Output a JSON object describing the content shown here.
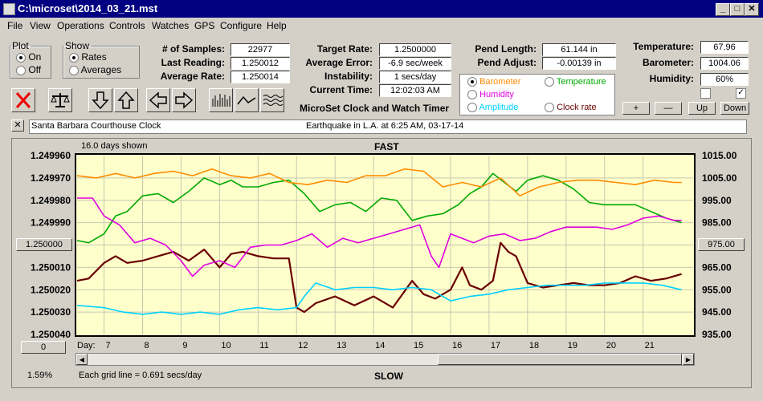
{
  "window": {
    "title": "C:\\microset\\2014_03_21.mst"
  },
  "menu": [
    "File",
    "View",
    "Operations",
    "Controls",
    "Watches",
    "GPS",
    "Configure",
    "Help"
  ],
  "plot_group": {
    "legend": "Plot",
    "on": "On",
    "off": "Off",
    "selected": "On"
  },
  "show_group": {
    "legend": "Show",
    "rates": "Rates",
    "averages": "Averages",
    "selected": "Rates"
  },
  "stats": {
    "samples_label": "# of Samples:",
    "samples": "22977",
    "last_label": "Last Reading:",
    "last": "1.250012",
    "avg_label": "Average Rate:",
    "avg": "1.250014"
  },
  "rates": {
    "target_label": "Target Rate:",
    "target": "1.2500000",
    "error_label": "Average Error:",
    "error": "-6.9 sec/week",
    "instab_label": "Instability:",
    "instab": "1 secs/day",
    "time_label": "Current Time:",
    "time": "12:02:03 AM"
  },
  "pend": {
    "length_label": "Pend Length:",
    "length": "61.144 in",
    "adjust_label": "Pend Adjust:",
    "adjust": "-0.00139 in"
  },
  "env": {
    "temp_label": "Temperature:",
    "temp": "67.96",
    "baro_label": "Barometer:",
    "baro": "1004.06",
    "hum_label": "Humidity:",
    "hum": "60%"
  },
  "overlay": {
    "barometer": "Barometer",
    "temperature": "Temperature",
    "humidity": "Humidity",
    "amplitude": "Amplitude",
    "clock_rate": "Clock rate",
    "selected": "Barometer"
  },
  "scale_buttons": {
    "plus": "+",
    "minus": "—",
    "up": "Up",
    "down": "Down"
  },
  "app_caption": "MicroSet Clock and Watch Timer",
  "clock_name": "Santa Barbara Courthouse Clock",
  "note": "Earthquake in L.A. at 6:25 AM, 03-17-14",
  "graph": {
    "days_shown": "16.0 days shown",
    "top_label": "FAST",
    "bottom_label": "SLOW",
    "grid_note": "Each grid line = 0.691 secs/day",
    "percent": "1.59%",
    "day_label": "Day:",
    "left_button": "1.250000",
    "right_button": "975.00",
    "zero_button": "0"
  },
  "colors": {
    "barometer": "#ff8c00",
    "temperature": "#00aa00",
    "humidity": "#e000e0",
    "amplitude": "#00d0ff",
    "clock_rate": "#6b0000"
  },
  "chart_data": {
    "type": "line",
    "title": "",
    "xlabel": "Day:",
    "x_ticks": [
      7,
      8,
      9,
      10,
      11,
      12,
      13,
      14,
      15,
      16,
      17,
      18,
      19,
      20,
      21
    ],
    "xlim": [
      6.3,
      22.3
    ],
    "left_axis": {
      "ticks": [
        "1.249960",
        "1.249970",
        "1.249980",
        "1.249990",
        "1.250000",
        "1.250010",
        "1.250020",
        "1.250030",
        "1.250040"
      ],
      "ylim": [
        1.25004,
        1.24996
      ]
    },
    "right_axis": {
      "ticks": [
        "1015.00",
        "1005.00",
        "995.00",
        "985.00",
        "975.00",
        "965.00",
        "955.00",
        "945.00",
        "935.00"
      ],
      "ylim": [
        935,
        1015
      ]
    },
    "series": [
      {
        "name": "Clock rate",
        "axis": "left",
        "color": "#6b0000",
        "x": [
          6.3,
          6.6,
          7.0,
          7.3,
          7.6,
          8.0,
          8.4,
          8.8,
          9.2,
          9.6,
          10.0,
          10.3,
          10.6,
          11.0,
          11.4,
          11.8,
          12.0,
          12.2,
          12.5,
          13.0,
          13.5,
          14.0,
          14.5,
          15.0,
          15.3,
          15.6,
          16.0,
          16.3,
          16.5,
          16.8,
          17.1,
          17.3,
          17.5,
          17.7,
          18.0,
          18.4,
          18.8,
          19.2,
          19.6,
          20.0,
          20.4,
          20.8,
          21.2,
          21.6,
          22.0
        ],
        "y": [
          1.250016,
          1.250015,
          1.250008,
          1.250005,
          1.250008,
          1.250007,
          1.250005,
          1.250003,
          1.250007,
          1.250002,
          1.25001,
          1.250004,
          1.250003,
          1.250005,
          1.250006,
          1.250006,
          1.250028,
          1.25003,
          1.250026,
          1.250023,
          1.250027,
          1.250023,
          1.250028,
          1.250016,
          1.250022,
          1.250024,
          1.25002,
          1.25001,
          1.250018,
          1.25002,
          1.250016,
          1.249999,
          1.250003,
          1.250005,
          1.250017,
          1.250019,
          1.250018,
          1.250017,
          1.250018,
          1.250018,
          1.250017,
          1.250014,
          1.250016,
          1.250015,
          1.250013
        ]
      },
      {
        "name": "Temperature",
        "axis": "right",
        "color": "#00aa00",
        "x": [
          6.3,
          6.6,
          7.0,
          7.3,
          7.6,
          8.0,
          8.4,
          8.8,
          9.2,
          9.6,
          10.0,
          10.3,
          10.6,
          11.0,
          11.4,
          11.8,
          12.2,
          12.6,
          13.0,
          13.4,
          13.8,
          14.2,
          14.6,
          15.0,
          15.4,
          15.8,
          16.2,
          16.5,
          16.8,
          17.1,
          17.4,
          17.7,
          18.0,
          18.4,
          18.8,
          19.2,
          19.6,
          20.0,
          20.4,
          20.8,
          21.2,
          21.6,
          22.0
        ],
        "y": [
          977,
          976,
          980,
          988,
          990,
          997,
          998,
          994,
          999,
          1005,
          1002,
          1004,
          1001,
          1001,
          1003,
          1004,
          998,
          990,
          993,
          994,
          990,
          996,
          995,
          986,
          988,
          989,
          993,
          998,
          1001,
          1007,
          1003,
          999,
          1004,
          1006,
          1004,
          1000,
          994,
          993,
          993,
          993,
          990,
          987,
          985
        ]
      },
      {
        "name": "Barometer",
        "axis": "right",
        "color": "#ff8c00",
        "x": [
          6.3,
          6.8,
          7.3,
          7.8,
          8.3,
          8.8,
          9.3,
          9.8,
          10.3,
          10.8,
          11.3,
          11.8,
          12.3,
          12.8,
          13.3,
          13.8,
          14.3,
          14.8,
          15.3,
          15.8,
          16.3,
          16.8,
          17.3,
          17.8,
          18.3,
          18.8,
          19.3,
          19.8,
          20.3,
          20.8,
          21.3,
          21.8,
          22.0
        ],
        "y": [
          1006,
          1005,
          1007,
          1005,
          1007,
          1008,
          1006,
          1009,
          1006,
          1005,
          1007,
          1003,
          1002,
          1004,
          1003,
          1006,
          1006,
          1009,
          1008,
          1001,
          1003,
          1001,
          1005,
          997,
          1001,
          1003,
          1004,
          1004,
          1003,
          1002,
          1004,
          1003,
          1003
        ]
      },
      {
        "name": "Humidity",
        "axis": "right",
        "color": "#e000e0",
        "x": [
          6.3,
          6.7,
          7.0,
          7.4,
          7.8,
          8.2,
          8.6,
          9.0,
          9.3,
          9.6,
          10.0,
          10.4,
          10.8,
          11.2,
          11.6,
          12.0,
          12.4,
          12.8,
          13.2,
          13.6,
          14.0,
          14.4,
          14.8,
          15.2,
          15.5,
          15.7,
          16.0,
          16.3,
          16.6,
          17.0,
          17.4,
          17.8,
          18.2,
          18.6,
          19.0,
          19.4,
          19.8,
          20.2,
          20.6,
          21.0,
          21.4,
          21.8,
          22.0
        ],
        "y": [
          996,
          996,
          988,
          984,
          976,
          978,
          975,
          968,
          961,
          966,
          968,
          965,
          974,
          975,
          975,
          977,
          980,
          974,
          978,
          976,
          978,
          980,
          982,
          984,
          970,
          965,
          980,
          978,
          976,
          979,
          980,
          977,
          978,
          981,
          983,
          983,
          983,
          982,
          984,
          987,
          988,
          986,
          986
        ]
      },
      {
        "name": "Amplitude",
        "axis": "right",
        "color": "#00d0ff",
        "x": [
          6.3,
          7.0,
          7.5,
          8.0,
          8.5,
          9.0,
          9.5,
          10.0,
          10.5,
          11.0,
          11.5,
          12.0,
          12.2,
          12.5,
          13.0,
          13.5,
          14.0,
          14.5,
          15.0,
          15.5,
          16.0,
          16.5,
          17.0,
          17.5,
          18.0,
          18.5,
          19.0,
          19.5,
          20.0,
          20.5,
          21.0,
          21.5,
          22.0
        ],
        "y": [
          948,
          947,
          945,
          944,
          945,
          944,
          945,
          944,
          946,
          947,
          946,
          947,
          952,
          958,
          955,
          956,
          956,
          955,
          956,
          955,
          950,
          952,
          953,
          955,
          956,
          957,
          957,
          957,
          958,
          958,
          958,
          957,
          955
        ]
      }
    ]
  }
}
